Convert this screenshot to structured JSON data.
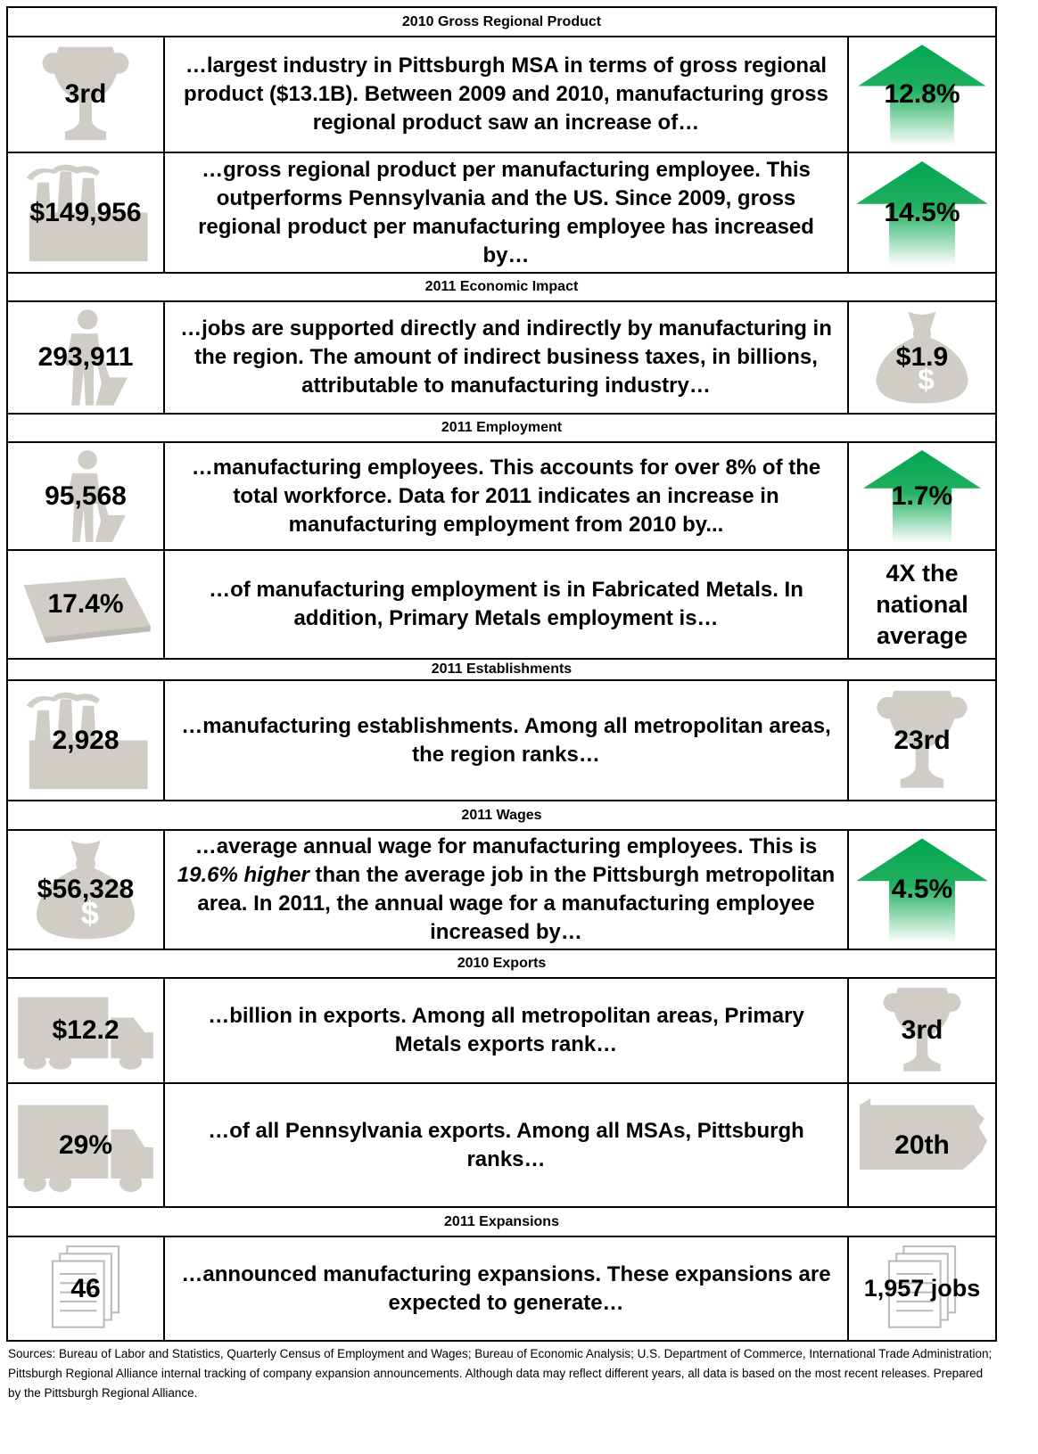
{
  "sections": [
    {
      "title": "2010 Gross Regional Product",
      "rows": [
        {
          "left": "3rd",
          "text": "…largest industry in Pittsburgh MSA in terms of gross regional product ($13.1B). Between 2009 and 2010, manufacturing gross regional product saw an increase of…",
          "right": "12.8%"
        },
        {
          "left": "$149,956",
          "text": "…gross regional product per manufacturing employee. This outperforms Pennsylvania and the US. Since 2009, gross regional product per manufacturing employee has increased by…",
          "right": "14.5%"
        }
      ]
    },
    {
      "title": "2011 Economic Impact",
      "rows": [
        {
          "left": "293,911",
          "text": "…jobs are supported directly and indirectly by manufacturing in the region. The amount of indirect business taxes, in billions, attributable to manufacturing industry…",
          "right": "$1.9"
        }
      ]
    },
    {
      "title": "2011 Employment",
      "rows": [
        {
          "left": "95,568",
          "text": "…manufacturing employees. This accounts for over 8% of the total workforce. Data for 2011 indicates an increase in manufacturing employment from 2010 by...",
          "right": "1.7%"
        },
        {
          "left": "17.4%",
          "text": "…of manufacturing employment is in Fabricated Metals. In addition, Primary Metals employment is…",
          "right": "4X the national average"
        }
      ]
    },
    {
      "title": "2011 Establishments",
      "rows": [
        {
          "left": "2,928",
          "text": "…manufacturing establishments. Among all metropolitan areas, the region ranks…",
          "right": "23rd"
        }
      ]
    },
    {
      "title": "2011 Wages",
      "rows": [
        {
          "left": "$56,328",
          "text": [
            "…average annual wage for manufacturing employees. This is ",
            "19.6% higher",
            " than the average job in the Pittsburgh metropolitan area. In 2011, the annual wage for a manufacturing employee increased by…"
          ],
          "right": "4.5%"
        }
      ]
    },
    {
      "title": "2010 Exports",
      "rows": [
        {
          "left": "$12.2",
          "text": "…billion in exports. Among all metropolitan areas, Primary Metals exports rank…",
          "right": "3rd"
        },
        {
          "left": "29%",
          "text": "…of all Pennsylvania exports. Among all MSAs, Pittsburgh ranks…",
          "right": "20th"
        }
      ]
    },
    {
      "title": "2011 Expansions",
      "rows": [
        {
          "left": "46",
          "text": "…announced manufacturing expansions. These expansions are expected to generate…",
          "right": "1,957 jobs"
        }
      ]
    }
  ],
  "footer": "Sources: Bureau of Labor and Statistics, Quarterly Census of Employment and Wages; Bureau of Economic Analysis; U.S. Department of Commerce, International Trade Administration; Pittsburgh Regional Alliance internal tracking of company expansion announcements. Although data may reflect different years, all data is based on the most recent releases. Prepared by the Pittsburgh Regional Alliance."
}
